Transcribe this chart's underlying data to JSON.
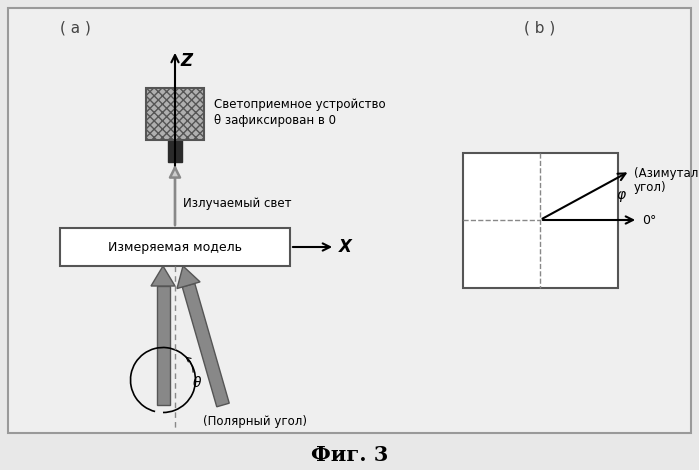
{
  "title": "Фиг. 3",
  "label_a": "( a )",
  "label_b": "( b )",
  "bg_color": "#e8e8e8",
  "text_svetopriemnoe": "Светоприемное устройство",
  "text_theta_fixed": "θ зафиксирован в 0",
  "text_izluchaemyi": "Излучаемый свет",
  "text_izmer_model": "Измеряемая модель",
  "text_x_axis": "X",
  "text_z_axis": "Z",
  "text_theta": "θ",
  "text_polar": "(Полярный угол)",
  "text_azimuth1": "(Азимутальный",
  "text_azimuth2": "угол)",
  "text_phi": "φ",
  "text_0deg": "0°"
}
